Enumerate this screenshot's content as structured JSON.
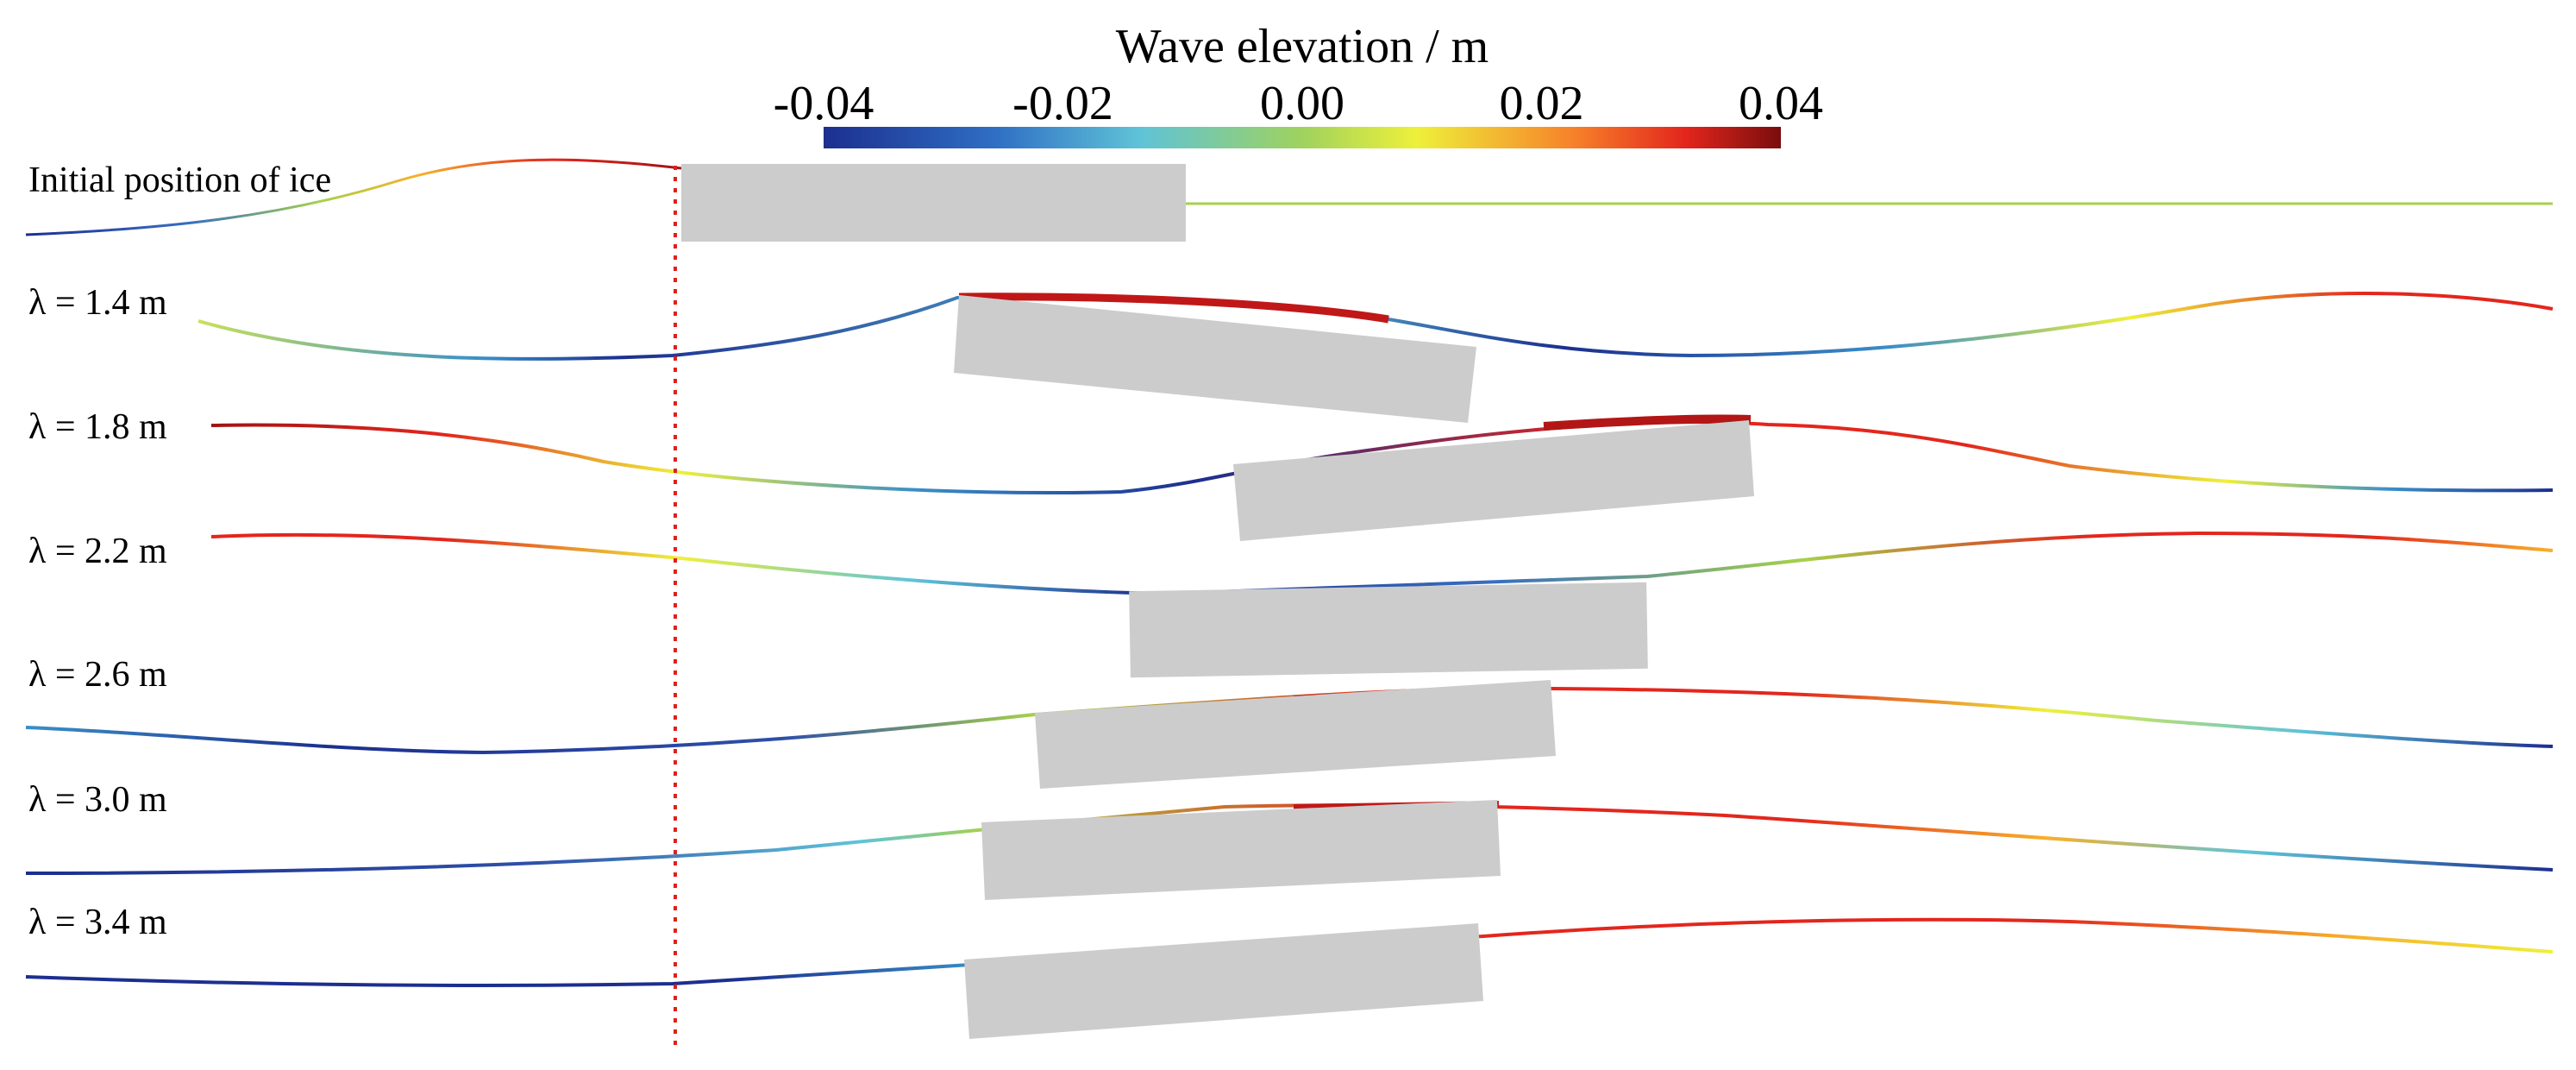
{
  "colorbar": {
    "title": "Wave elevation / m",
    "ticks": [
      "-0.04",
      "-0.02",
      "0.00",
      "0.02",
      "0.04"
    ],
    "min": -0.04,
    "max": 0.04,
    "stops": [
      {
        "offset": 0.0,
        "color": "#1c2f8f"
      },
      {
        "offset": 0.18,
        "color": "#2f6fc4"
      },
      {
        "offset": 0.33,
        "color": "#5fc3d8"
      },
      {
        "offset": 0.5,
        "color": "#9fd25e"
      },
      {
        "offset": 0.62,
        "color": "#eef03a"
      },
      {
        "offset": 0.78,
        "color": "#f7842a"
      },
      {
        "offset": 0.9,
        "color": "#e3261d"
      },
      {
        "offset": 1.0,
        "color": "#7a0d0d"
      }
    ]
  },
  "reference_line": {
    "color": "#e0201b",
    "style": "dotted"
  },
  "rows": [
    {
      "id": "initial",
      "label": "Initial position of ice"
    },
    {
      "id": "l14",
      "label": "λ = 1.4 m"
    },
    {
      "id": "l18",
      "label": "λ = 1.8 m"
    },
    {
      "id": "l22",
      "label": "λ = 2.2 m"
    },
    {
      "id": "l26",
      "label": "λ = 2.6 m"
    },
    {
      "id": "l30",
      "label": "λ = 3.0 m"
    },
    {
      "id": "l34",
      "label": "λ = 3.4 m"
    }
  ],
  "colors": {
    "ice_floe": "#cccccc",
    "trough": "#1c2f8f",
    "crest": "#e3261d",
    "crest_dark": "#7a0d0d",
    "still_water": "#a6d14a"
  }
}
